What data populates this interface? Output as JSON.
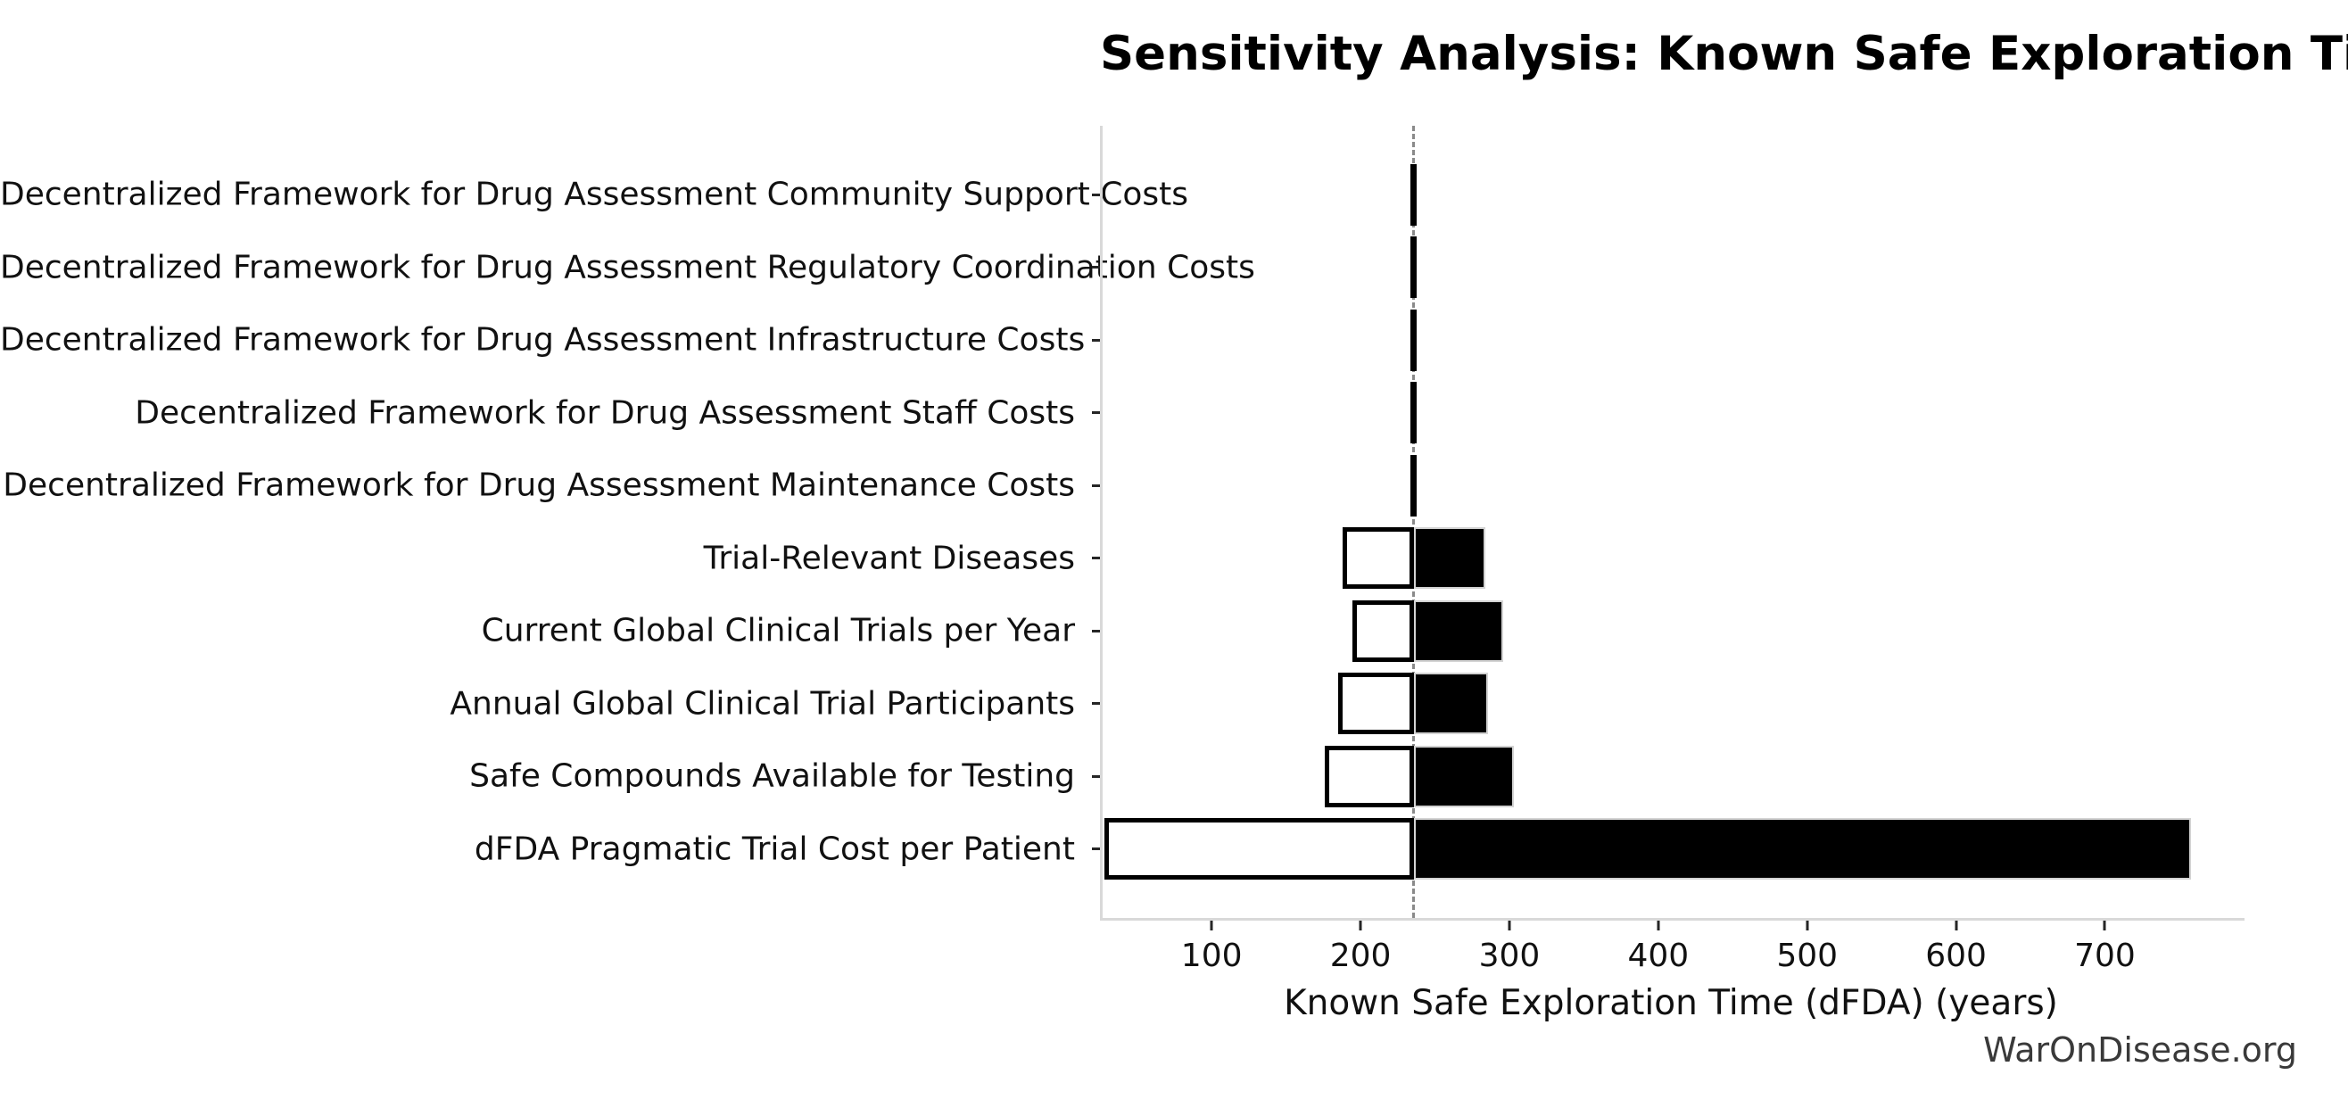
{
  "chart_data": {
    "type": "bar",
    "subtype": "tornado-sensitivity",
    "title": "Sensitivity Analysis: Known Safe Exploration Time (dFDA)",
    "xlabel": "Known Safe Exploration Time (dFDA) (years)",
    "ylabel": "",
    "watermark": "WarOnDisease.org",
    "baseline_value": 234,
    "xlim": [
      25,
      792
    ],
    "xticks": [
      100,
      200,
      300,
      400,
      500,
      600,
      700
    ],
    "grid": false,
    "legend": "none",
    "bar_orientation": "horizontal",
    "categories": [
      "Decentralized Framework for Drug Assessment Community Support Costs",
      "Decentralized Framework for Drug Assessment Regulatory Coordination Costs",
      "Decentralized Framework for Drug Assessment Infrastructure Costs",
      "Decentralized Framework for Drug Assessment Staff Costs",
      "Decentralized Framework for Drug Assessment Maintenance Costs",
      "Trial-Relevant Diseases",
      "Current Global Clinical Trials per Year",
      "Annual Global Clinical Trial Participants",
      "Safe Compounds Available for Testing",
      "dFDA Pragmatic Trial Cost per Patient"
    ],
    "series": [
      {
        "name": "low-to-baseline (white segment)",
        "values": [
          232,
          232,
          232,
          232,
          232,
          186,
          193,
          183,
          174,
          26
        ]
      },
      {
        "name": "baseline-to-high (black segment)",
        "values": [
          236,
          236,
          236,
          236,
          236,
          282,
          294,
          284,
          301,
          756
        ]
      }
    ],
    "colors": {
      "low_segment_fill": "#ffffff",
      "low_segment_edge": "#000000",
      "high_segment_fill": "#000000",
      "high_segment_edge": "#d3d3d3",
      "baseline_dash": "#8a8a8a",
      "spine": "#d9d9d9",
      "tick": "#262626",
      "text": "#111111",
      "watermark_text": "#3a3a3a",
      "background": "#ffffff"
    }
  }
}
